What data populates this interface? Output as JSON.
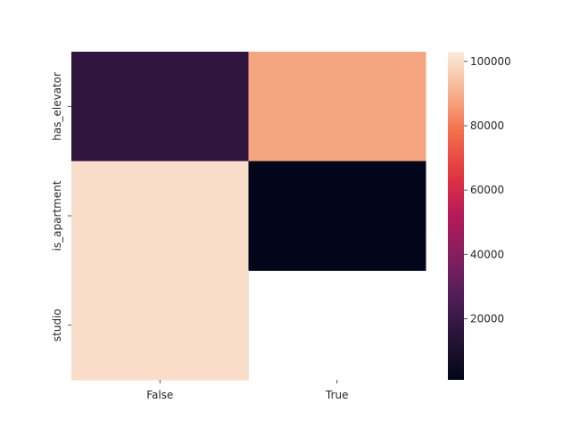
{
  "chart_data": {
    "type": "heatmap",
    "title": "",
    "xlabel": "",
    "ylabel": "",
    "x_categories": [
      "False",
      "True"
    ],
    "y_categories": [
      "has_elevator",
      "is_apartment",
      "studio"
    ],
    "values": [
      [
        17000,
        88000
      ],
      [
        100000,
        1000
      ],
      [
        100000,
        null
      ]
    ],
    "colorbar": {
      "min": 1000,
      "max": 103000,
      "ticks": [
        20000,
        40000,
        60000,
        80000,
        100000
      ],
      "tick_labels": [
        "20000",
        "40000",
        "60000",
        "80000",
        "100000"
      ],
      "colormap": "rocket"
    },
    "grid": false,
    "legend": "colorbar-right"
  }
}
